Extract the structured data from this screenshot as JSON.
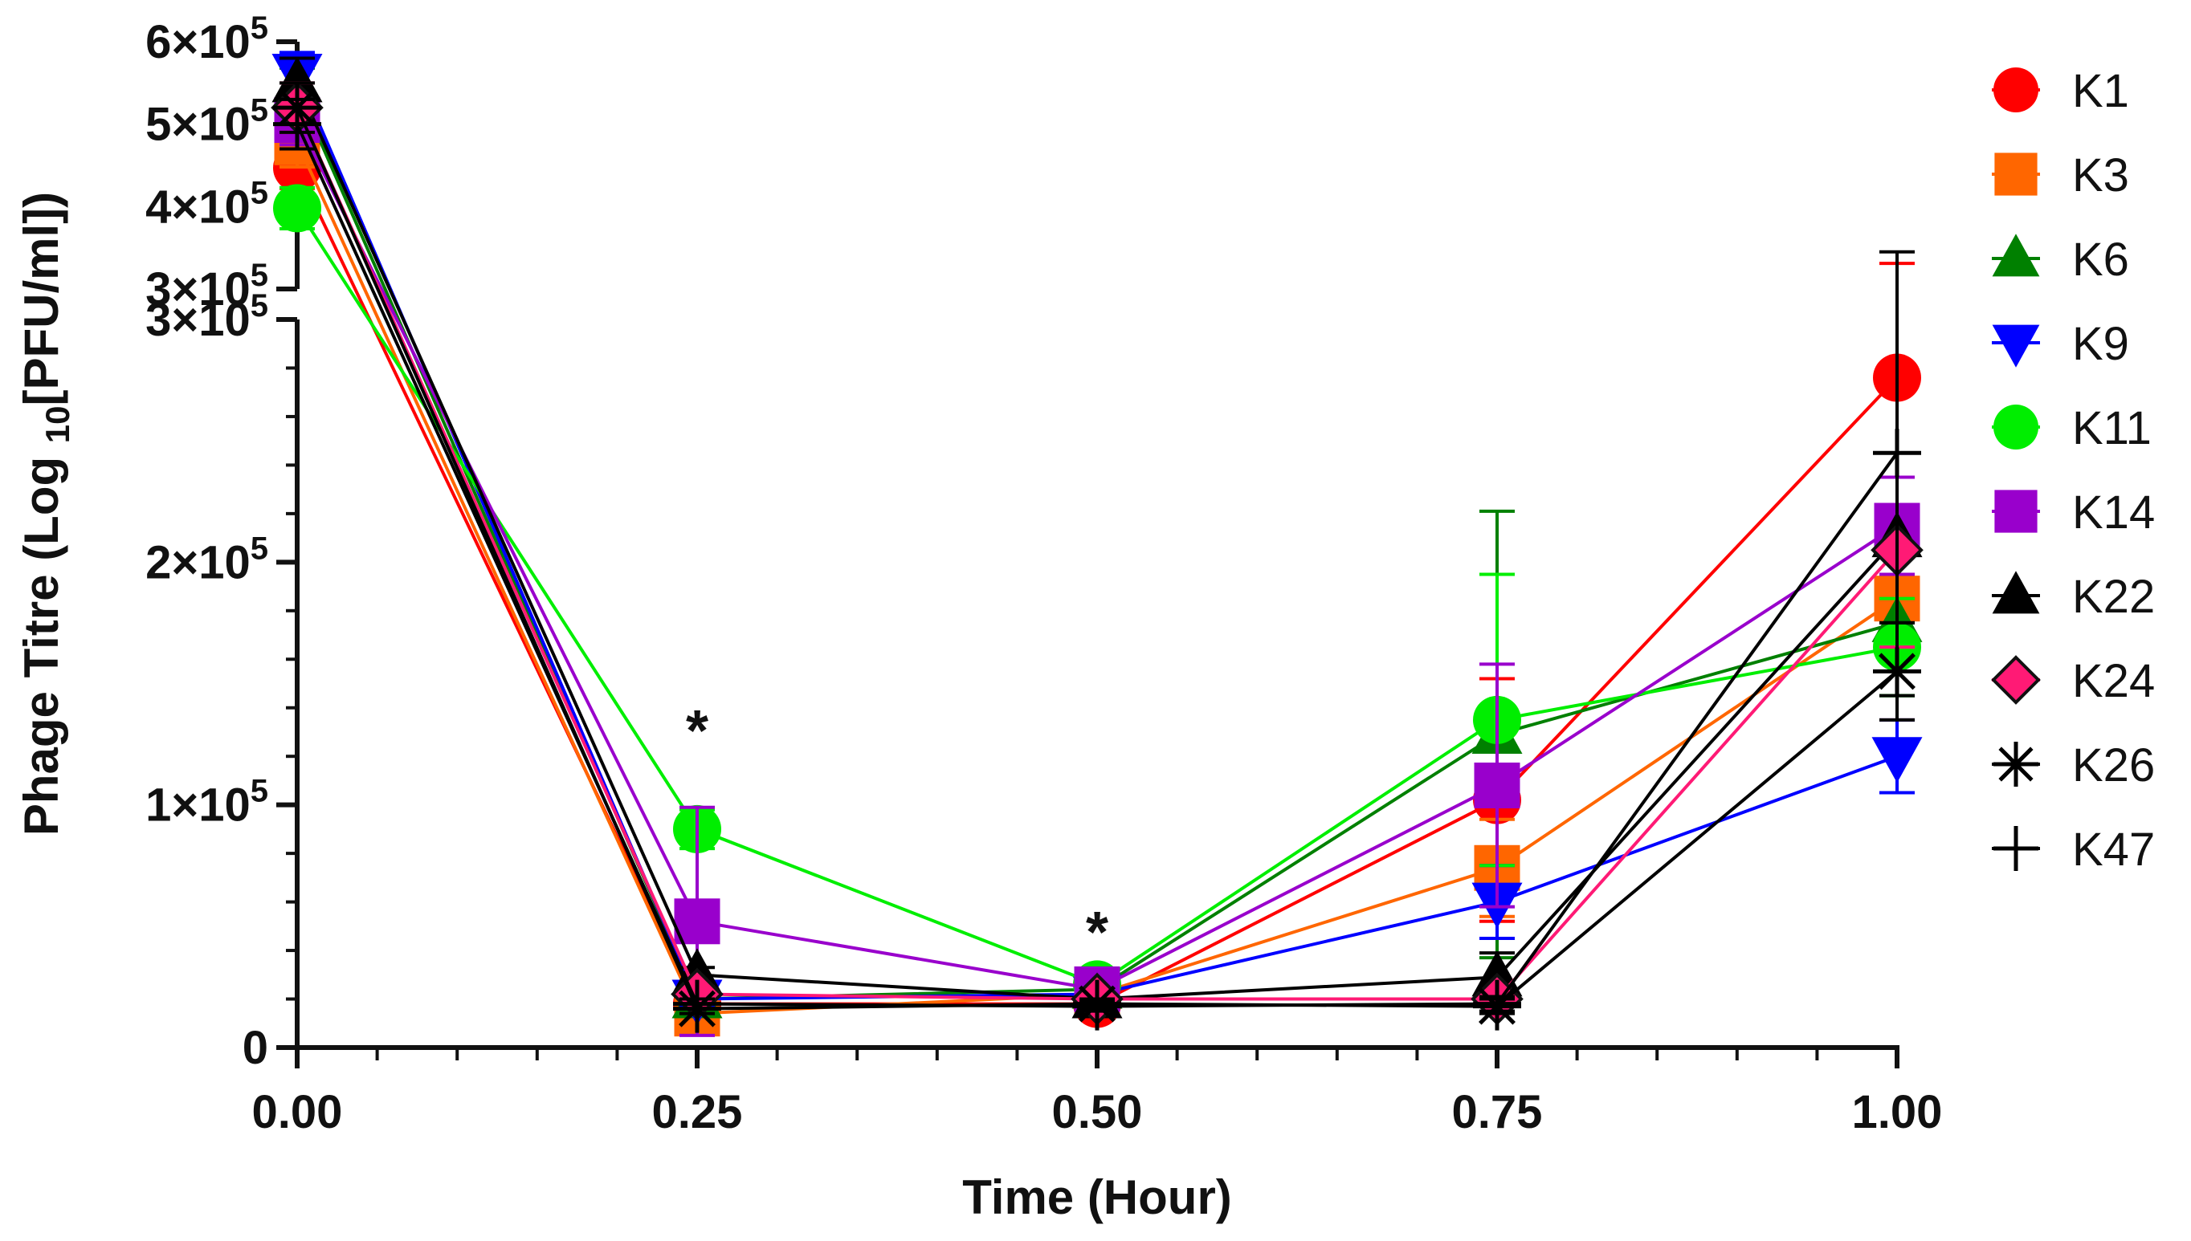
{
  "chart_data": {
    "type": "line",
    "title": "",
    "xlabel": "Time (Hour)",
    "ylabel_main": "Phage Titre (Log ",
    "ylabel_sub": "10",
    "ylabel_end": "[PFU/ml])",
    "x": [
      0.0,
      0.25,
      0.5,
      0.75,
      1.0
    ],
    "x_tick_labels": [
      "0.00",
      "0.25",
      "0.50",
      "0.75",
      "1.00"
    ],
    "xlim": [
      0,
      1.0
    ],
    "ylim_lower": [
      0,
      300000
    ],
    "ylim_upper": [
      300000,
      600000
    ],
    "axis_break": "between 3×10^5 segments",
    "y_ticks_lower": [
      {
        "value": 0,
        "mant": "0",
        "exp": ""
      },
      {
        "value": 100000,
        "mant": "1×10",
        "exp": "5"
      },
      {
        "value": 200000,
        "mant": "2×10",
        "exp": "5"
      },
      {
        "value": 300000,
        "mant": "3×10",
        "exp": "5"
      }
    ],
    "y_ticks_upper": [
      {
        "value": 300000,
        "mant": "3×10",
        "exp": "5"
      },
      {
        "value": 400000,
        "mant": "4×10",
        "exp": "5"
      },
      {
        "value": 500000,
        "mant": "5×10",
        "exp": "5"
      },
      {
        "value": 600000,
        "mant": "6×10",
        "exp": "5"
      }
    ],
    "annotations": [
      {
        "text": "*",
        "x": 0.25,
        "y": 135000
      },
      {
        "text": "*",
        "x": 0.5,
        "y": 52000
      }
    ],
    "legend_position": "right",
    "series": [
      {
        "name": "K1",
        "color": "#ff0000",
        "marker": "circle",
        "values": [
          447000,
          18000,
          18000,
          102000,
          276000
        ],
        "errors": [
          25000,
          3000,
          2000,
          50000,
          55000
        ]
      },
      {
        "name": "K3",
        "color": "#ff6600",
        "marker": "square",
        "values": [
          478000,
          14000,
          22000,
          74000,
          185000
        ],
        "errors": [
          30000,
          2000,
          2000,
          20000,
          50000
        ]
      },
      {
        "name": "K6",
        "color": "#008000",
        "marker": "triangle-up",
        "values": [
          543000,
          20000,
          24000,
          129000,
          175000
        ],
        "errors": [
          25000,
          3000,
          2000,
          92000,
          30000
        ]
      },
      {
        "name": "K9",
        "color": "#0000ff",
        "marker": "triangle-down",
        "values": [
          562000,
          20000,
          22000,
          60000,
          120000
        ],
        "errors": [
          25000,
          3000,
          2000,
          15000,
          15000
        ]
      },
      {
        "name": "K11",
        "color": "#00ee00",
        "marker": "circle",
        "values": [
          398000,
          90000,
          26000,
          135000,
          165000
        ],
        "errors": [
          25000,
          8000,
          2000,
          60000,
          20000
        ]
      },
      {
        "name": "K14",
        "color": "#9900cc",
        "marker": "square",
        "values": [
          505000,
          52000,
          24000,
          108000,
          215000
        ],
        "errors": [
          30000,
          47000,
          2000,
          50000,
          20000
        ]
      },
      {
        "name": "K22",
        "color": "#000000",
        "marker": "triangle-up",
        "values": [
          550000,
          30000,
          20000,
          29000,
          210000
        ],
        "errors": [
          30000,
          3000,
          2000,
          10000,
          35000
        ]
      },
      {
        "name": "K24",
        "color": "#ff1a75",
        "marker": "diamond",
        "values": [
          520000,
          22000,
          20000,
          20000,
          205000
        ],
        "errors": [
          30000,
          3000,
          2000,
          3000,
          40000
        ]
      },
      {
        "name": "K26",
        "color": "#000000",
        "marker": "asterisk",
        "values": [
          520000,
          16000,
          18000,
          17000,
          155000
        ],
        "errors": [
          30000,
          2000,
          2000,
          3000,
          20000
        ]
      },
      {
        "name": "K47",
        "color": "#000000",
        "marker": "plus",
        "values": [
          500000,
          18000,
          17000,
          18000,
          245000
        ],
        "errors": [
          30000,
          2000,
          2000,
          3000,
          100000
        ]
      }
    ]
  }
}
